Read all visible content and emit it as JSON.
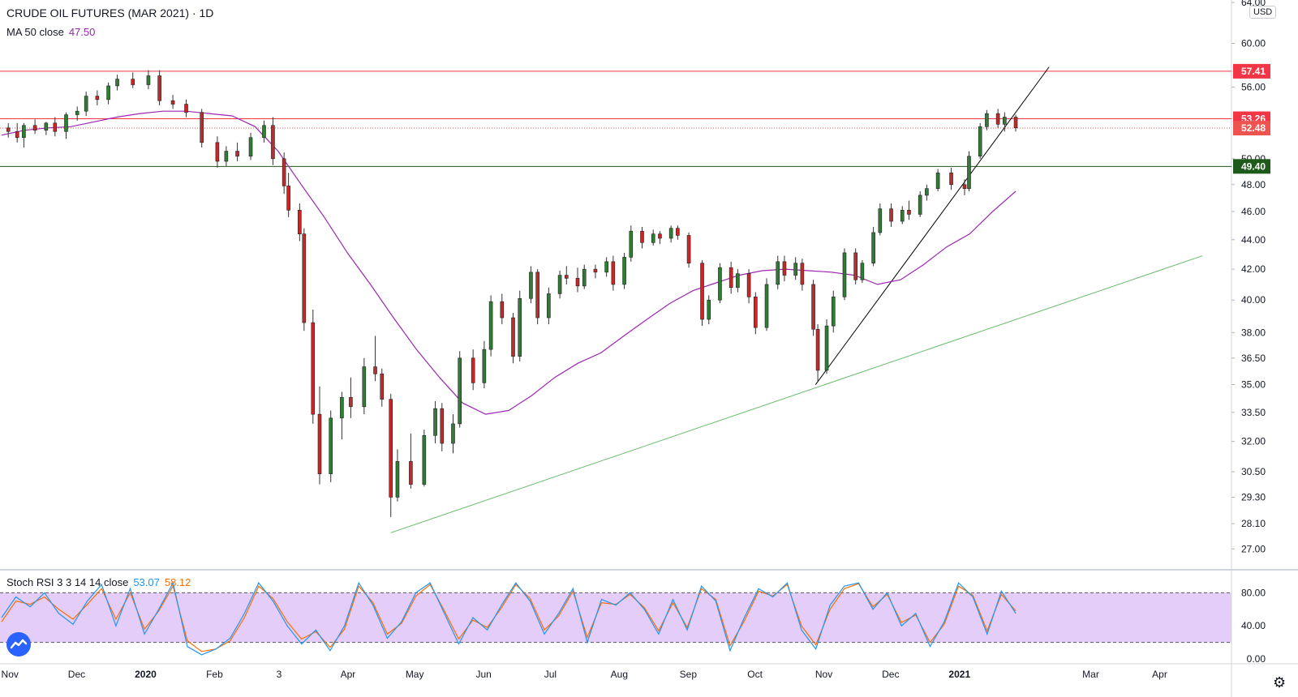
{
  "header": {
    "title": "CRUDE OIL FUTURES (MAR 2021) · 1D",
    "ma_label": "MA 50 close",
    "ma_value": "47.50",
    "currency": "USD"
  },
  "stoch_rsi": {
    "label": "Stoch RSI 3 3 14 14 close",
    "k_value": "53.07",
    "d_value": "58.12",
    "k_color": "#2196f3",
    "d_color": "#ff6d00",
    "band": [
      20,
      80
    ],
    "yticks": [
      "80.00",
      "40.00",
      "0.00"
    ]
  },
  "icons": {
    "logo": "tradingview-logo-icon",
    "settings": "gear-icon"
  },
  "chart_data": {
    "type": "candlestick",
    "title": "CRUDE OIL FUTURES (MAR 2021) · 1D",
    "x_tick_labels": [
      "Nov",
      "Dec",
      "2020",
      "Feb",
      "3",
      "Apr",
      "May",
      "Jun",
      "Jul",
      "Aug",
      "Sep",
      "Oct",
      "Nov",
      "Dec",
      "2021",
      "Mar",
      "Apr"
    ],
    "y_tick_labels": [
      "64.00",
      "60.00",
      "56.00",
      "50.00",
      "48.00",
      "46.00",
      "44.00",
      "42.00",
      "40.00",
      "38.00",
      "36.50",
      "35.00",
      "33.50",
      "32.00",
      "30.50",
      "29.30",
      "28.10",
      "27.00"
    ],
    "y_scale": "log",
    "ylim": [
      26.6,
      64.0
    ],
    "price_lines": [
      {
        "label": "57.41",
        "value": 57.41,
        "color": "#f23645"
      },
      {
        "label": "53.26",
        "value": 53.26,
        "color": "#f23645"
      },
      {
        "label": "49.40",
        "value": 49.4,
        "color": "#1e5a19"
      }
    ],
    "last_price": {
      "label": "52.48",
      "value": 52.48,
      "color": "#ef5350"
    },
    "trendlines": [
      {
        "color": "#000000",
        "from": {
          "x": "2020-10-29",
          "y": 35.0
        },
        "to": {
          "x": "2021-02-11",
          "y": 57.8
        }
      },
      {
        "color": "#66bb6a",
        "from": {
          "x": "2020-04-21",
          "y": 27.7
        },
        "to": {
          "x": "2021-04-21",
          "y": 42.9
        }
      }
    ],
    "ma50_values": [
      51.9,
      52.3,
      52.5,
      52.6,
      53.0,
      53.4,
      53.7,
      53.9,
      53.9,
      53.7,
      53.5,
      52.6,
      50.6,
      48.0,
      45.6,
      43.1,
      41.0,
      38.9,
      37.0,
      35.4,
      34.0,
      33.4,
      33.6,
      34.4,
      35.4,
      36.2,
      36.8,
      37.8,
      38.8,
      39.8,
      40.6,
      41.1,
      41.6,
      41.9,
      42.0,
      41.9,
      41.8,
      41.6,
      41.0,
      41.3,
      42.3,
      43.5,
      44.4,
      46.0,
      47.5
    ],
    "candles": [
      {
        "t": "2019-11-01",
        "o": 52.5,
        "h": 52.9,
        "l": 51.7,
        "c": 52.2
      },
      {
        "t": "2019-11-05",
        "o": 52.2,
        "h": 52.9,
        "l": 51.3,
        "c": 51.7
      },
      {
        "t": "2019-11-08",
        "o": 51.7,
        "h": 52.9,
        "l": 50.9,
        "c": 52.7
      },
      {
        "t": "2019-11-13",
        "o": 52.7,
        "h": 53.2,
        "l": 52.0,
        "c": 52.3
      },
      {
        "t": "2019-11-18",
        "o": 52.3,
        "h": 53.0,
        "l": 51.9,
        "c": 52.9
      },
      {
        "t": "2019-11-22",
        "o": 52.9,
        "h": 53.4,
        "l": 51.8,
        "c": 52.2
      },
      {
        "t": "2019-11-27",
        "o": 52.2,
        "h": 53.8,
        "l": 51.6,
        "c": 53.6
      },
      {
        "t": "2019-12-02",
        "o": 53.6,
        "h": 54.3,
        "l": 53.1,
        "c": 53.9
      },
      {
        "t": "2019-12-06",
        "o": 53.9,
        "h": 55.6,
        "l": 53.5,
        "c": 55.2
      },
      {
        "t": "2019-12-11",
        "o": 55.2,
        "h": 55.7,
        "l": 54.4,
        "c": 54.9
      },
      {
        "t": "2019-12-16",
        "o": 54.9,
        "h": 56.4,
        "l": 54.5,
        "c": 56.1
      },
      {
        "t": "2019-12-20",
        "o": 56.1,
        "h": 57.1,
        "l": 55.7,
        "c": 56.7
      },
      {
        "t": "2019-12-27",
        "o": 56.7,
        "h": 57.3,
        "l": 55.9,
        "c": 56.2
      },
      {
        "t": "2020-01-03",
        "o": 56.2,
        "h": 57.5,
        "l": 55.8,
        "c": 57.0
      },
      {
        "t": "2020-01-08",
        "o": 57.0,
        "h": 57.5,
        "l": 54.4,
        "c": 54.8
      },
      {
        "t": "2020-01-14",
        "o": 54.8,
        "h": 55.3,
        "l": 54.1,
        "c": 54.5
      },
      {
        "t": "2020-01-20",
        "o": 54.5,
        "h": 54.9,
        "l": 53.4,
        "c": 53.8
      },
      {
        "t": "2020-01-27",
        "o": 53.8,
        "h": 54.1,
        "l": 50.9,
        "c": 51.3
      },
      {
        "t": "2020-02-03",
        "o": 51.3,
        "h": 51.8,
        "l": 49.3,
        "c": 49.8
      },
      {
        "t": "2020-02-07",
        "o": 49.8,
        "h": 51.0,
        "l": 49.4,
        "c": 50.6
      },
      {
        "t": "2020-02-12",
        "o": 50.6,
        "h": 51.3,
        "l": 49.8,
        "c": 50.2
      },
      {
        "t": "2020-02-18",
        "o": 50.2,
        "h": 52.1,
        "l": 49.9,
        "c": 51.7
      },
      {
        "t": "2020-02-24",
        "o": 51.7,
        "h": 53.1,
        "l": 51.3,
        "c": 52.7
      },
      {
        "t": "2020-02-28",
        "o": 52.7,
        "h": 53.4,
        "l": 49.5,
        "c": 50.0
      },
      {
        "t": "2020-03-04",
        "o": 50.0,
        "h": 50.5,
        "l": 47.3,
        "c": 47.9
      },
      {
        "t": "2020-03-06",
        "o": 47.9,
        "h": 48.9,
        "l": 45.6,
        "c": 46.1
      },
      {
        "t": "2020-03-11",
        "o": 46.1,
        "h": 46.6,
        "l": 43.9,
        "c": 44.4
      },
      {
        "t": "2020-03-13",
        "o": 44.4,
        "h": 44.8,
        "l": 38.1,
        "c": 38.6
      },
      {
        "t": "2020-03-17",
        "o": 38.6,
        "h": 39.4,
        "l": 32.9,
        "c": 33.4
      },
      {
        "t": "2020-03-20",
        "o": 33.4,
        "h": 34.9,
        "l": 29.9,
        "c": 30.4
      },
      {
        "t": "2020-03-25",
        "o": 30.4,
        "h": 33.6,
        "l": 30.0,
        "c": 33.2
      },
      {
        "t": "2020-03-30",
        "o": 33.2,
        "h": 34.6,
        "l": 32.1,
        "c": 34.3
      },
      {
        "t": "2020-04-03",
        "o": 34.3,
        "h": 35.4,
        "l": 33.2,
        "c": 33.8
      },
      {
        "t": "2020-04-09",
        "o": 33.8,
        "h": 36.5,
        "l": 33.4,
        "c": 36.0
      },
      {
        "t": "2020-04-14",
        "o": 36.0,
        "h": 37.8,
        "l": 35.2,
        "c": 35.6
      },
      {
        "t": "2020-04-17",
        "o": 35.6,
        "h": 35.9,
        "l": 33.8,
        "c": 34.2
      },
      {
        "t": "2020-04-21",
        "o": 34.2,
        "h": 34.5,
        "l": 28.4,
        "c": 29.3
      },
      {
        "t": "2020-04-24",
        "o": 29.3,
        "h": 31.6,
        "l": 29.1,
        "c": 31.0
      },
      {
        "t": "2020-04-30",
        "o": 31.0,
        "h": 32.4,
        "l": 29.7,
        "c": 29.9
      },
      {
        "t": "2020-05-06",
        "o": 29.9,
        "h": 32.6,
        "l": 29.8,
        "c": 32.3
      },
      {
        "t": "2020-05-11",
        "o": 32.3,
        "h": 34.1,
        "l": 31.9,
        "c": 33.7
      },
      {
        "t": "2020-05-14",
        "o": 33.7,
        "h": 34.0,
        "l": 31.5,
        "c": 31.9
      },
      {
        "t": "2020-05-19",
        "o": 31.9,
        "h": 33.4,
        "l": 31.4,
        "c": 32.9
      },
      {
        "t": "2020-05-22",
        "o": 32.9,
        "h": 36.9,
        "l": 32.7,
        "c": 36.5
      },
      {
        "t": "2020-05-28",
        "o": 36.5,
        "h": 37.0,
        "l": 34.7,
        "c": 35.1
      },
      {
        "t": "2020-06-02",
        "o": 35.1,
        "h": 37.5,
        "l": 34.8,
        "c": 37.0
      },
      {
        "t": "2020-06-05",
        "o": 37.0,
        "h": 40.3,
        "l": 36.6,
        "c": 39.9
      },
      {
        "t": "2020-06-10",
        "o": 39.9,
        "h": 40.4,
        "l": 38.5,
        "c": 38.9
      },
      {
        "t": "2020-06-15",
        "o": 38.9,
        "h": 39.2,
        "l": 36.2,
        "c": 36.6
      },
      {
        "t": "2020-06-18",
        "o": 36.6,
        "h": 40.6,
        "l": 36.3,
        "c": 40.1
      },
      {
        "t": "2020-06-23",
        "o": 40.1,
        "h": 42.2,
        "l": 39.8,
        "c": 41.8
      },
      {
        "t": "2020-06-26",
        "o": 41.8,
        "h": 42.0,
        "l": 38.5,
        "c": 38.9
      },
      {
        "t": "2020-07-01",
        "o": 38.9,
        "h": 40.8,
        "l": 38.5,
        "c": 40.4
      },
      {
        "t": "2020-07-06",
        "o": 40.4,
        "h": 41.9,
        "l": 40.1,
        "c": 41.6
      },
      {
        "t": "2020-07-09",
        "o": 41.6,
        "h": 42.2,
        "l": 41.0,
        "c": 41.4
      },
      {
        "t": "2020-07-14",
        "o": 41.4,
        "h": 42.1,
        "l": 40.5,
        "c": 40.9
      },
      {
        "t": "2020-07-17",
        "o": 40.9,
        "h": 42.3,
        "l": 40.7,
        "c": 42.0
      },
      {
        "t": "2020-07-22",
        "o": 42.0,
        "h": 42.3,
        "l": 41.4,
        "c": 41.8
      },
      {
        "t": "2020-07-27",
        "o": 41.8,
        "h": 42.8,
        "l": 41.5,
        "c": 42.5
      },
      {
        "t": "2020-07-30",
        "o": 42.5,
        "h": 42.9,
        "l": 40.6,
        "c": 41.0
      },
      {
        "t": "2020-08-04",
        "o": 41.0,
        "h": 43.1,
        "l": 40.7,
        "c": 42.8
      },
      {
        "t": "2020-08-07",
        "o": 42.8,
        "h": 45.0,
        "l": 42.5,
        "c": 44.6
      },
      {
        "t": "2020-08-12",
        "o": 44.6,
        "h": 44.9,
        "l": 43.4,
        "c": 43.8
      },
      {
        "t": "2020-08-17",
        "o": 43.8,
        "h": 44.7,
        "l": 43.6,
        "c": 44.4
      },
      {
        "t": "2020-08-20",
        "o": 44.4,
        "h": 44.6,
        "l": 43.7,
        "c": 44.1
      },
      {
        "t": "2020-08-25",
        "o": 44.1,
        "h": 45.0,
        "l": 43.8,
        "c": 44.8
      },
      {
        "t": "2020-08-28",
        "o": 44.8,
        "h": 45.0,
        "l": 44.0,
        "c": 44.3
      },
      {
        "t": "2020-09-02",
        "o": 44.3,
        "h": 44.5,
        "l": 42.1,
        "c": 42.4
      },
      {
        "t": "2020-09-08",
        "o": 42.4,
        "h": 42.6,
        "l": 38.4,
        "c": 38.8
      },
      {
        "t": "2020-09-11",
        "o": 38.8,
        "h": 40.3,
        "l": 38.5,
        "c": 40.0
      },
      {
        "t": "2020-09-16",
        "o": 40.0,
        "h": 42.4,
        "l": 39.8,
        "c": 42.1
      },
      {
        "t": "2020-09-21",
        "o": 42.1,
        "h": 42.5,
        "l": 40.4,
        "c": 40.8
      },
      {
        "t": "2020-09-24",
        "o": 40.8,
        "h": 42.0,
        "l": 40.5,
        "c": 41.7
      },
      {
        "t": "2020-09-29",
        "o": 41.7,
        "h": 42.0,
        "l": 39.8,
        "c": 40.2
      },
      {
        "t": "2020-10-02",
        "o": 40.2,
        "h": 40.5,
        "l": 37.9,
        "c": 38.3
      },
      {
        "t": "2020-10-07",
        "o": 38.3,
        "h": 41.4,
        "l": 38.1,
        "c": 41.0
      },
      {
        "t": "2020-10-12",
        "o": 41.0,
        "h": 42.9,
        "l": 40.7,
        "c": 42.5
      },
      {
        "t": "2020-10-15",
        "o": 42.5,
        "h": 42.9,
        "l": 41.2,
        "c": 41.6
      },
      {
        "t": "2020-10-20",
        "o": 41.6,
        "h": 42.8,
        "l": 41.3,
        "c": 42.4
      },
      {
        "t": "2020-10-23",
        "o": 42.4,
        "h": 42.7,
        "l": 40.6,
        "c": 41.0
      },
      {
        "t": "2020-10-28",
        "o": 41.0,
        "h": 41.3,
        "l": 37.8,
        "c": 38.2
      },
      {
        "t": "2020-10-30",
        "o": 38.2,
        "h": 38.5,
        "l": 35.2,
        "c": 35.8
      },
      {
        "t": "2020-11-03",
        "o": 35.8,
        "h": 38.8,
        "l": 35.6,
        "c": 38.4
      },
      {
        "t": "2020-11-06",
        "o": 38.4,
        "h": 40.6,
        "l": 38.0,
        "c": 40.2
      },
      {
        "t": "2020-11-11",
        "o": 40.2,
        "h": 43.4,
        "l": 40.0,
        "c": 43.1
      },
      {
        "t": "2020-11-16",
        "o": 43.1,
        "h": 43.4,
        "l": 41.0,
        "c": 41.3
      },
      {
        "t": "2020-11-19",
        "o": 41.3,
        "h": 42.6,
        "l": 41.1,
        "c": 42.4
      },
      {
        "t": "2020-11-24",
        "o": 42.4,
        "h": 44.9,
        "l": 42.2,
        "c": 44.5
      },
      {
        "t": "2020-11-27",
        "o": 44.5,
        "h": 46.6,
        "l": 44.3,
        "c": 46.2
      },
      {
        "t": "2020-12-02",
        "o": 46.2,
        "h": 46.6,
        "l": 44.9,
        "c": 45.3
      },
      {
        "t": "2020-12-07",
        "o": 45.3,
        "h": 46.4,
        "l": 45.1,
        "c": 46.1
      },
      {
        "t": "2020-12-10",
        "o": 46.1,
        "h": 46.8,
        "l": 45.4,
        "c": 45.8
      },
      {
        "t": "2020-12-15",
        "o": 45.8,
        "h": 47.5,
        "l": 45.6,
        "c": 47.2
      },
      {
        "t": "2020-12-18",
        "o": 47.2,
        "h": 48.0,
        "l": 46.8,
        "c": 47.7
      },
      {
        "t": "2020-12-23",
        "o": 47.7,
        "h": 49.2,
        "l": 47.5,
        "c": 48.9
      },
      {
        "t": "2020-12-29",
        "o": 48.9,
        "h": 49.3,
        "l": 47.6,
        "c": 48.0
      },
      {
        "t": "2021-01-04",
        "o": 48.0,
        "h": 48.4,
        "l": 47.2,
        "c": 47.7
      },
      {
        "t": "2021-01-06",
        "o": 47.7,
        "h": 50.6,
        "l": 47.5,
        "c": 50.2
      },
      {
        "t": "2021-01-11",
        "o": 50.2,
        "h": 52.9,
        "l": 50.0,
        "c": 52.6
      },
      {
        "t": "2021-01-14",
        "o": 52.6,
        "h": 54.0,
        "l": 52.3,
        "c": 53.7
      },
      {
        "t": "2021-01-19",
        "o": 53.7,
        "h": 54.1,
        "l": 52.5,
        "c": 52.8
      },
      {
        "t": "2021-01-22",
        "o": 52.8,
        "h": 53.8,
        "l": 52.2,
        "c": 53.4
      },
      {
        "t": "2021-01-27",
        "o": 53.4,
        "h": 53.6,
        "l": 52.2,
        "c": 52.5
      }
    ],
    "stoch_k": [
      50,
      75,
      63,
      80,
      55,
      42,
      70,
      90,
      40,
      85,
      30,
      60,
      92,
      15,
      5,
      12,
      25,
      55,
      92,
      70,
      40,
      18,
      35,
      10,
      40,
      92,
      65,
      25,
      45,
      80,
      92,
      55,
      18,
      50,
      35,
      65,
      92,
      70,
      30,
      55,
      85,
      20,
      72,
      65,
      80,
      60,
      30,
      72,
      35,
      88,
      70,
      10,
      50,
      85,
      75,
      92,
      35,
      12,
      65,
      88,
      92,
      60,
      80,
      40,
      55,
      15,
      45,
      92,
      75,
      30,
      82,
      55
    ],
    "stoch_d": [
      45,
      70,
      66,
      75,
      60,
      48,
      66,
      85,
      48,
      80,
      36,
      58,
      88,
      22,
      9,
      12,
      22,
      50,
      88,
      73,
      45,
      24,
      33,
      14,
      36,
      88,
      68,
      30,
      43,
      76,
      90,
      58,
      24,
      47,
      38,
      62,
      90,
      73,
      35,
      52,
      82,
      26,
      68,
      66,
      78,
      62,
      34,
      68,
      38,
      85,
      72,
      16,
      46,
      82,
      76,
      90,
      40,
      17,
      60,
      85,
      91,
      63,
      78,
      44,
      53,
      20,
      42,
      88,
      77,
      34,
      78,
      58
    ]
  }
}
